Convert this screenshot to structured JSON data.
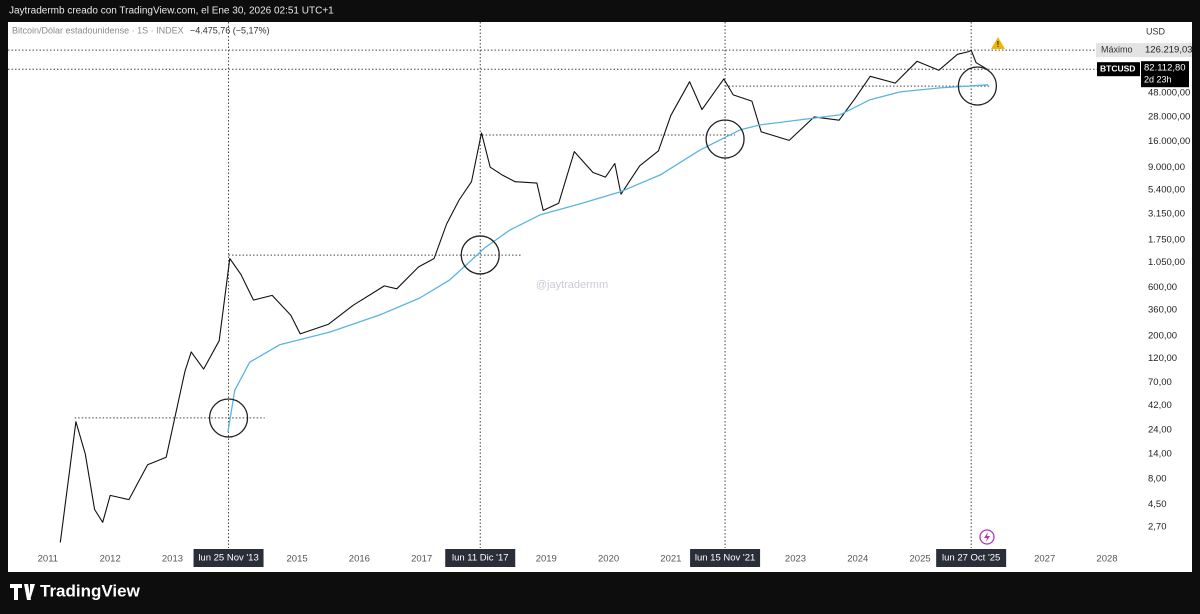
{
  "header": "Jaytradermb creado con TradingView.com, el Ene 30, 2026 02:51 UTC+1",
  "footer": "TradingView",
  "chart_data": {
    "type": "line",
    "legend": {
      "symbol": "Bitcoin/Dólar estadounidense · 1S · INDEX",
      "change": "−4.475,76 (−5,17%)"
    },
    "watermark": "@jaytradermm",
    "currency": "USD",
    "log_scale": true,
    "grid": false,
    "xlim": [
      2010.36,
      2028.53
    ],
    "xticks": [
      2011,
      2012,
      2013,
      2015,
      2016,
      2017,
      2019,
      2020,
      2021,
      2023,
      2024,
      2025,
      2027,
      2028
    ],
    "ylim": [
      1.68,
      238000
    ],
    "yticks": [
      {
        "value": 48000,
        "label": "48.000,00"
      },
      {
        "value": 28000,
        "label": "28.000,00"
      },
      {
        "value": 16000,
        "label": "16.000,00"
      },
      {
        "value": 9000,
        "label": "9.000,00"
      },
      {
        "value": 5400,
        "label": "5.400,00"
      },
      {
        "value": 3150,
        "label": "3.150,00"
      },
      {
        "value": 1750,
        "label": "1.750,00"
      },
      {
        "value": 1050,
        "label": "1.050,00"
      },
      {
        "value": 600,
        "label": "600,00"
      },
      {
        "value": 360,
        "label": "360,00"
      },
      {
        "value": 200,
        "label": "200,00"
      },
      {
        "value": 120,
        "label": "120,00"
      },
      {
        "value": 70,
        "label": "70,00"
      },
      {
        "value": 42,
        "label": "42,00"
      },
      {
        "value": 24,
        "label": "24,00"
      },
      {
        "value": 14,
        "label": "14,00"
      },
      {
        "value": 8,
        "label": "8,00"
      },
      {
        "value": 4.5,
        "label": "4,50"
      },
      {
        "value": 2.7,
        "label": "2,70"
      }
    ],
    "series": [
      {
        "name": "BTCUSD",
        "color": "#111111",
        "x": [
          2011.2,
          2011.45,
          2011.6,
          2011.75,
          2011.88,
          2012.0,
          2012.3,
          2012.6,
          2012.9,
          2013.2,
          2013.3,
          2013.5,
          2013.75,
          2013.92,
          2014.1,
          2014.3,
          2014.6,
          2014.9,
          2015.05,
          2015.5,
          2015.9,
          2016.4,
          2016.6,
          2016.95,
          2017.2,
          2017.4,
          2017.6,
          2017.8,
          2017.96,
          2018.1,
          2018.3,
          2018.5,
          2018.85,
          2018.95,
          2019.2,
          2019.45,
          2019.75,
          2019.95,
          2020.1,
          2020.2,
          2020.5,
          2020.8,
          2021.0,
          2021.3,
          2021.5,
          2021.85,
          2022.0,
          2022.3,
          2022.45,
          2022.9,
          2023.3,
          2023.7,
          2023.95,
          2024.2,
          2024.6,
          2024.95,
          2025.3,
          2025.6,
          2025.78,
          2025.82,
          2025.9,
          2026.08
        ],
        "values": [
          1.9,
          29,
          14,
          4,
          3,
          5.5,
          5,
          11,
          13,
          90,
          140,
          95,
          180,
          1150,
          800,
          450,
          500,
          320,
          210,
          260,
          400,
          620,
          580,
          950,
          1150,
          2500,
          4300,
          6500,
          19500,
          9000,
          7500,
          6500,
          6300,
          3400,
          4000,
          12800,
          8000,
          7200,
          9800,
          4900,
          9300,
          13000,
          29000,
          62000,
          33000,
          66000,
          46000,
          40000,
          20000,
          16500,
          28000,
          26000,
          42000,
          70000,
          60000,
          98000,
          80000,
          115000,
          122000,
          126000,
          95000,
          82000
        ]
      },
      {
        "color": "#5ab4e0",
        "x": [
          2013.89,
          2014.0,
          2014.24,
          2014.72,
          2015.53,
          2016.33,
          2016.97,
          2017.45,
          2017.77,
          2018.01,
          2018.42,
          2018.9,
          2019.54,
          2020.18,
          2020.83,
          2021.47,
          2022.11,
          2022.43,
          2023.07,
          2023.71,
          2024.19,
          2024.68,
          2025.32,
          2026.09
        ],
        "values": [
          23,
          59,
          111,
          164,
          219,
          322,
          472,
          710,
          1064,
          1459,
          2193,
          3070,
          3937,
          5150,
          7570,
          13300,
          20900,
          23400,
          26200,
          29300,
          41100,
          49200,
          53800,
          57700
        ]
      }
    ],
    "max_line": {
      "name": "Máximo",
      "value": 126219.03,
      "label": "126.219,03"
    },
    "last_price": {
      "value": 82112.8,
      "label": "82.112,80",
      "countdown": "2d 23h"
    },
    "date_markers": [
      {
        "x": 2013.9,
        "label": "lun 25 Nov '13"
      },
      {
        "x": 2017.94,
        "label": "lun 11 Dic '17"
      },
      {
        "x": 2021.87,
        "label": "lun 15 Nov '21"
      },
      {
        "x": 2025.82,
        "label": "lun 27 Oct '25"
      }
    ],
    "levels": [
      {
        "value": 31.6,
        "from": 2011.43,
        "to": 2014.48
      },
      {
        "value": 1240,
        "from": 2013.9,
        "to": 2018.6
      },
      {
        "value": 18600,
        "from": 2017.97,
        "to": 2022.03
      },
      {
        "value": 56000,
        "from": 2021.87,
        "to": 2026.12
      }
    ],
    "circles": [
      {
        "x": 2013.9,
        "y": 31.5
      },
      {
        "x": 2017.94,
        "y": 1245
      },
      {
        "x": 2021.87,
        "y": 17000
      },
      {
        "x": 2025.92,
        "y": 56200
      }
    ]
  }
}
